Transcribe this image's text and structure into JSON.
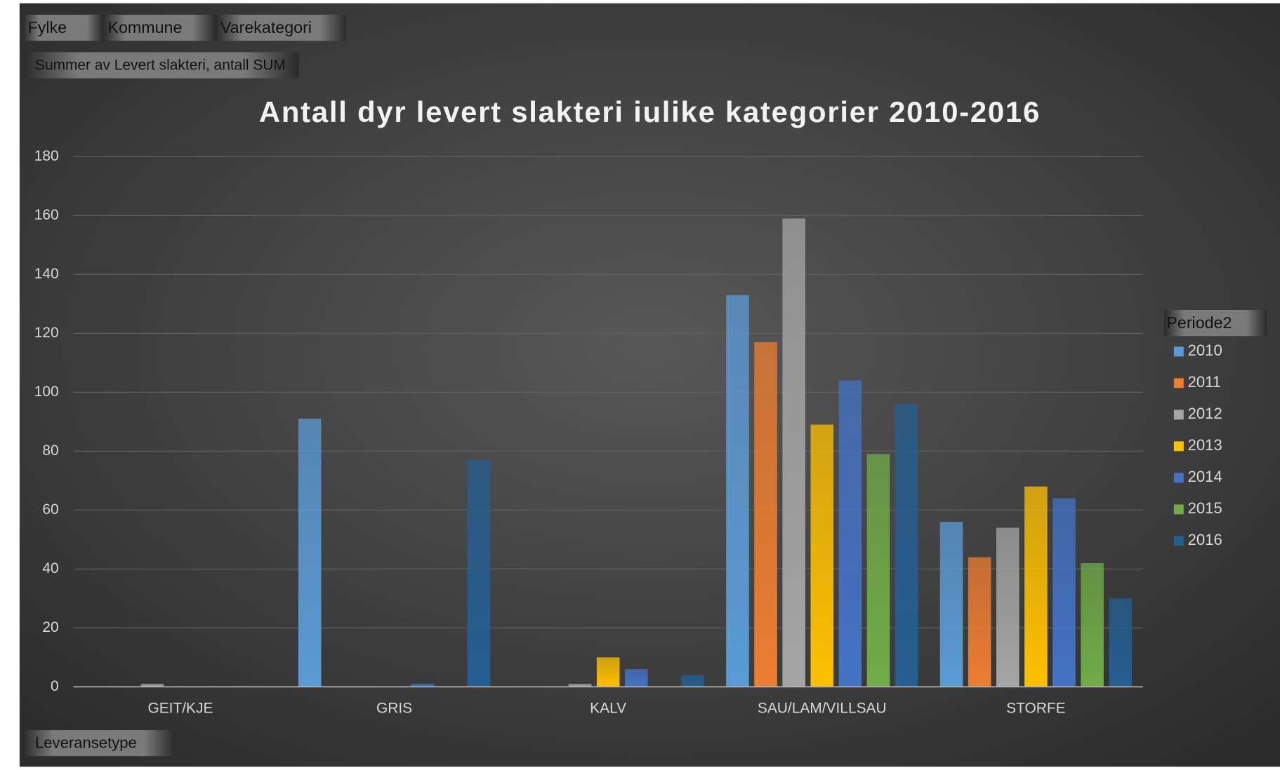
{
  "chart_data": {
    "type": "bar",
    "title": "Antall dyr levert slakteri  iulike kategorier  2010-2016",
    "filter_buttons": [
      "Fylke",
      "Kommune",
      "Varekategori"
    ],
    "value_field": "Summer av Levert slakteri, antall SUM",
    "axis_field": "Leveransetype",
    "legend_title": "Periode2",
    "categories": [
      "GEIT/KJE",
      "GRIS",
      "KALV",
      "SAU/LAM/VILLSAU",
      "STORFE"
    ],
    "series": [
      {
        "name": "2010",
        "color": "#5b9bd5",
        "values": [
          null,
          91,
          null,
          133,
          56
        ]
      },
      {
        "name": "2011",
        "color": "#ed7d31",
        "values": [
          null,
          null,
          null,
          117,
          44
        ]
      },
      {
        "name": "2012",
        "color": "#a5a5a5",
        "values": [
          1,
          null,
          1,
          159,
          54
        ]
      },
      {
        "name": "2013",
        "color": "#ffc000",
        "values": [
          null,
          null,
          10,
          89,
          68
        ]
      },
      {
        "name": "2014",
        "color": "#4472c4",
        "values": [
          null,
          1,
          6,
          104,
          64
        ]
      },
      {
        "name": "2015",
        "color": "#70ad47",
        "values": [
          null,
          null,
          null,
          79,
          42
        ]
      },
      {
        "name": "2016",
        "color": "#255e91",
        "values": [
          null,
          77,
          4,
          96,
          30
        ]
      }
    ],
    "ylim": [
      0,
      180
    ],
    "yticks": [
      0,
      20,
      40,
      60,
      80,
      100,
      120,
      140,
      160,
      180
    ],
    "grid": true,
    "legend_position": "right"
  }
}
